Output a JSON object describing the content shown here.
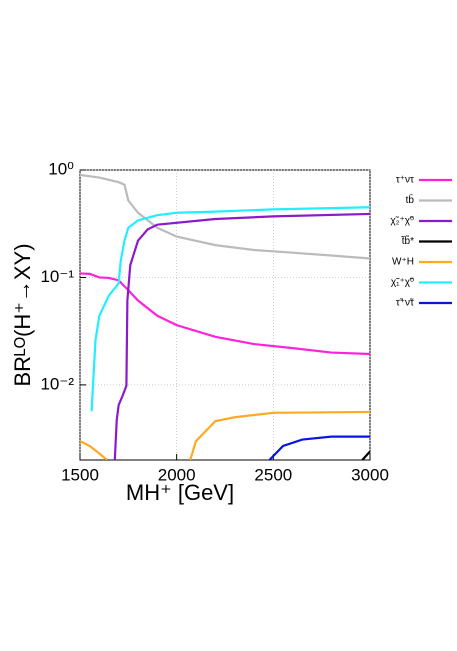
{
  "chart_data": {
    "type": "line",
    "xlabel": "MH⁺ [GeV]",
    "ylabel": "BRᴸᴼ(H⁺→XY)",
    "xlim": [
      1500,
      3000
    ],
    "xticks": [
      1500,
      2000,
      2500,
      3000
    ],
    "ylim": [
      0.002,
      1
    ],
    "yticks": [
      {
        "value": 1,
        "label": "10⁰"
      },
      {
        "value": 0.1,
        "label": "10⁻¹"
      },
      {
        "value": 0.01,
        "label": "10⁻²"
      }
    ],
    "log_y": true,
    "grid": true,
    "legend": "right",
    "series": [
      {
        "name": "τ⁺ντ",
        "color": "#ff22dd",
        "x": [
          1500,
          1550,
          1600,
          1650,
          1700,
          1750,
          1800,
          1900,
          2000,
          2200,
          2400,
          2600,
          2800,
          3000
        ],
        "values": [
          0.109,
          0.108,
          0.1,
          0.099,
          0.094,
          0.076,
          0.061,
          0.044,
          0.036,
          0.028,
          0.024,
          0.022,
          0.02,
          0.0194
        ]
      },
      {
        "name": "tb̄",
        "color": "#bbbbbb",
        "x": [
          1500,
          1600,
          1700,
          1730,
          1750,
          1800,
          1900,
          2000,
          2200,
          2400,
          2600,
          2800,
          3000
        ],
        "values": [
          0.9,
          0.85,
          0.77,
          0.73,
          0.52,
          0.4,
          0.29,
          0.24,
          0.2,
          0.18,
          0.17,
          0.16,
          0.15
        ]
      },
      {
        "name": "χ̃₂⁺χ̃⁰",
        "color": "#8a1acb",
        "x": [
          1680,
          1690,
          1700,
          1720,
          1740,
          1745,
          1760,
          1800,
          1850,
          1900,
          2200,
          2500,
          3000
        ],
        "values": [
          0.002,
          0.0047,
          0.0065,
          0.0079,
          0.0098,
          0.061,
          0.13,
          0.22,
          0.28,
          0.31,
          0.35,
          0.37,
          0.39
        ]
      },
      {
        "name": "t̃b̃*",
        "color": "#000000",
        "x": [
          2960,
          3000
        ],
        "values": [
          0.002,
          0.0024
        ]
      },
      {
        "name": "W⁺H",
        "color": "#ffaa22",
        "x": [
          1500,
          1550,
          1600,
          1640,
          1800,
          2070,
          2100,
          2200,
          2300,
          2500,
          3000
        ],
        "values": [
          0.003,
          0.0027,
          0.0023,
          0.002,
          null,
          0.002,
          0.003,
          0.0046,
          0.005,
          0.0055,
          0.0056
        ]
      },
      {
        "name": "χ̃₁⁺χ̃⁰",
        "color": "#22eeff",
        "x": [
          1560,
          1580,
          1600,
          1650,
          1700,
          1710,
          1730,
          1750,
          1800,
          1900,
          2000,
          2200,
          2500,
          3000
        ],
        "values": [
          0.0057,
          0.026,
          0.044,
          0.068,
          0.088,
          0.14,
          0.22,
          0.29,
          0.34,
          0.38,
          0.4,
          0.41,
          0.43,
          0.45
        ]
      },
      {
        "name": "τ̃⁺ν̃τ",
        "color": "#0b16dd",
        "x": [
          2480,
          2550,
          2650,
          2800,
          3000
        ],
        "values": [
          0.002,
          0.0027,
          0.0031,
          0.0033,
          0.0033
        ]
      }
    ]
  }
}
